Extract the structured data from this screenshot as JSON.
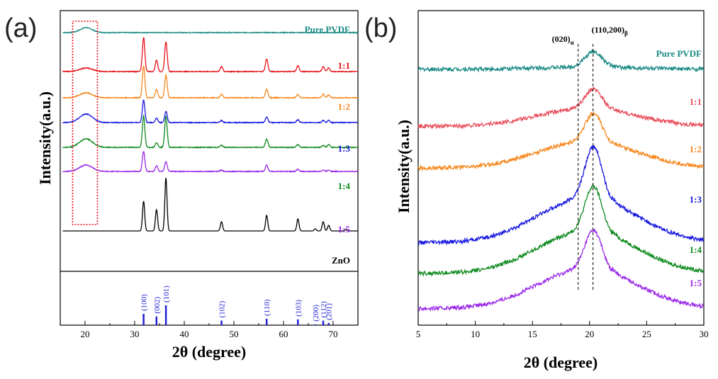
{
  "chart_data": [
    {
      "panel": "(a)",
      "type": "line",
      "xlabel": "2θ (degree)",
      "ylabel": "Intensity(a.u.)",
      "xlim": [
        15,
        75
      ],
      "xticks": [
        20,
        30,
        40,
        50,
        60,
        70
      ],
      "grid": false,
      "series": [
        {
          "name": "Pure PVDF",
          "color": "#1a8a84",
          "base": 2.3,
          "peaks": [
            [
              20.2,
              0.07,
              1.2
            ]
          ]
        },
        {
          "name": "1:1",
          "color": "#e8141c",
          "base": 1.75,
          "peaks": [
            [
              20.2,
              0.05,
              1.3
            ],
            [
              31.8,
              0.48,
              0.25
            ],
            [
              34.4,
              0.16,
              0.25
            ],
            [
              36.3,
              0.42,
              0.25
            ],
            [
              47.5,
              0.07,
              0.25
            ],
            [
              56.6,
              0.18,
              0.25
            ],
            [
              62.9,
              0.08,
              0.25
            ],
            [
              68.0,
              0.07,
              0.25
            ],
            [
              69.1,
              0.05,
              0.25
            ]
          ]
        },
        {
          "name": "1:2",
          "color": "#f5881e",
          "base": 1.38,
          "peaks": [
            [
              20.2,
              0.07,
              1.3
            ],
            [
              31.8,
              0.45,
              0.25
            ],
            [
              34.4,
              0.12,
              0.25
            ],
            [
              36.3,
              0.32,
              0.25
            ],
            [
              47.5,
              0.05,
              0.25
            ],
            [
              56.6,
              0.12,
              0.25
            ],
            [
              62.9,
              0.05,
              0.25
            ],
            [
              68.0,
              0.05,
              0.25
            ],
            [
              69.1,
              0.04,
              0.25
            ]
          ]
        },
        {
          "name": "1:3",
          "color": "#1717e0",
          "base": 1.03,
          "peaks": [
            [
              20.2,
              0.12,
              1.3
            ],
            [
              31.8,
              0.32,
              0.25
            ],
            [
              34.4,
              0.06,
              0.25
            ],
            [
              36.3,
              0.16,
              0.25
            ],
            [
              47.5,
              0.03,
              0.25
            ],
            [
              56.6,
              0.08,
              0.25
            ],
            [
              62.9,
              0.04,
              0.25
            ],
            [
              68.0,
              0.03,
              0.25
            ],
            [
              69.1,
              0.03,
              0.25
            ]
          ]
        },
        {
          "name": "1:4",
          "color": "#0f8a1e",
          "base": 0.68,
          "peaks": [
            [
              20.2,
              0.12,
              1.3
            ],
            [
              31.8,
              0.44,
              0.25
            ],
            [
              34.4,
              0.07,
              0.25
            ],
            [
              36.3,
              0.44,
              0.25
            ],
            [
              47.5,
              0.03,
              0.25
            ],
            [
              56.6,
              0.12,
              0.25
            ],
            [
              62.9,
              0.04,
              0.25
            ],
            [
              68.0,
              0.03,
              0.25
            ],
            [
              69.1,
              0.04,
              0.25
            ]
          ]
        },
        {
          "name": "1:5",
          "color": "#9a28e8",
          "base": 0.34,
          "peaks": [
            [
              20.2,
              0.09,
              1.3
            ],
            [
              31.8,
              0.28,
              0.25
            ],
            [
              34.4,
              0.08,
              0.25
            ],
            [
              36.3,
              0.14,
              0.25
            ],
            [
              47.5,
              0.02,
              0.25
            ],
            [
              56.6,
              0.09,
              0.25
            ],
            [
              62.9,
              0.03,
              0.25
            ],
            [
              68.0,
              0.02,
              0.25
            ],
            [
              69.1,
              0.02,
              0.25
            ]
          ]
        },
        {
          "name": "ZnO",
          "color": "#000000",
          "base": -0.5,
          "peaks": [
            [
              31.8,
              0.42,
              0.22
            ],
            [
              34.4,
              0.3,
              0.22
            ],
            [
              36.3,
              0.75,
              0.22
            ],
            [
              47.5,
              0.13,
              0.22
            ],
            [
              56.6,
              0.22,
              0.22
            ],
            [
              62.9,
              0.17,
              0.22
            ],
            [
              66.4,
              0.03,
              0.22
            ],
            [
              68.0,
              0.13,
              0.22
            ],
            [
              69.1,
              0.08,
              0.22
            ],
            [
              72.6,
              0.02,
              0.22
            ]
          ]
        }
      ],
      "reference_pattern": [
        {
          "hkl": "(100)",
          "x": 31.8,
          "intensity": 0.57
        },
        {
          "hkl": "(002)",
          "x": 34.4,
          "intensity": 0.44
        },
        {
          "hkl": "(101)",
          "x": 36.3,
          "intensity": 1.0
        },
        {
          "hkl": "(102)",
          "x": 47.5,
          "intensity": 0.23
        },
        {
          "hkl": "(110)",
          "x": 56.6,
          "intensity": 0.32
        },
        {
          "hkl": "(103)",
          "x": 62.9,
          "intensity": 0.29
        },
        {
          "hkl": "(200)",
          "x": 66.4,
          "intensity": 0.04
        },
        {
          "hkl": "(112)",
          "x": 68.0,
          "intensity": 0.23
        },
        {
          "hkl": "(201)",
          "x": 69.1,
          "intensity": 0.11
        }
      ],
      "highlight_region": [
        17.5,
        22.5
      ]
    },
    {
      "panel": "(b)",
      "type": "line",
      "xlabel": "2θ (degree)",
      "ylabel": "Intensity(a.u.)",
      "xlim": [
        5,
        30
      ],
      "xticks": [
        5,
        10,
        15,
        20,
        25,
        30
      ],
      "grid": false,
      "series": [
        {
          "name": "Pure PVDF",
          "color": "#1a8a84",
          "base": 5.6,
          "bg": 0.05,
          "peak": 0.35
        },
        {
          "name": "1:1",
          "color": "#e84f5c",
          "base": 4.3,
          "bg": 0.4,
          "peak": 0.45
        },
        {
          "name": "1:2",
          "color": "#f5881e",
          "base": 3.35,
          "bg": 0.6,
          "peak": 0.65
        },
        {
          "name": "1:3",
          "color": "#1717e0",
          "base": 1.65,
          "bg": 1.0,
          "peak": 1.2
        },
        {
          "name": "1:4",
          "color": "#0f8a1e",
          "base": 0.95,
          "bg": 0.95,
          "peak": 1.05
        },
        {
          "name": "1:5",
          "color": "#9a28e8",
          "base": 0.15,
          "bg": 0.9,
          "peak": 0.9
        }
      ],
      "reference_lines": [
        {
          "label": "(020)",
          "subscript": "α",
          "x": 19.0
        },
        {
          "label": "(110,200)",
          "subscript": "β",
          "x": 20.3
        }
      ]
    }
  ],
  "panel_labels": {
    "a": "(a)",
    "b": "(b)"
  },
  "zno_label": "ZnO"
}
